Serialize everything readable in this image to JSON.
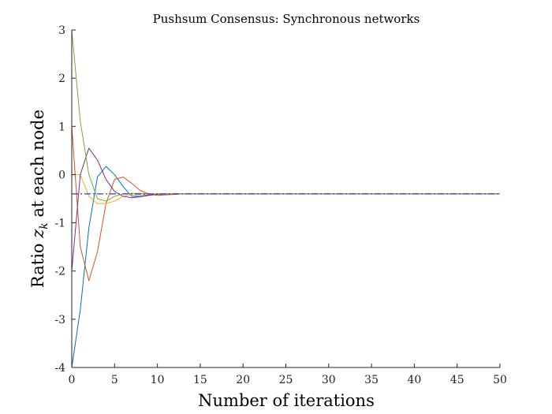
{
  "chart_data": {
    "type": "line",
    "title": "Pushsum Consensus: Synchronous networks",
    "xlabel": "Number of iterations",
    "ylabel_prefix": "Ratio ",
    "ylabel_var": "z",
    "ylabel_sub": "k",
    "ylabel_suffix": " at each node",
    "xlim": [
      0,
      50
    ],
    "ylim": [
      -4,
      3
    ],
    "xticks": [
      0,
      5,
      10,
      15,
      20,
      25,
      30,
      35,
      40,
      45,
      50
    ],
    "yticks": [
      -4,
      -3,
      -2,
      -1,
      0,
      1,
      2,
      3
    ],
    "grid": false,
    "consensus_value": -0.4,
    "consensus_color": "#3333dd",
    "series": [
      {
        "color": "#0072BD",
        "x": [
          0,
          1,
          2,
          3,
          4,
          5,
          6,
          7,
          8,
          9,
          10,
          11,
          12,
          13,
          14,
          50
        ],
        "y": [
          -4,
          -2.8,
          -1.1,
          -0.05,
          0.17,
          0.0,
          -0.25,
          -0.45,
          -0.45,
          -0.42,
          -0.41,
          -0.4,
          -0.4,
          -0.4,
          -0.4,
          -0.4
        ]
      },
      {
        "color": "#D95319",
        "x": [
          0,
          1,
          2,
          3,
          4,
          5,
          6,
          7,
          8,
          9,
          10,
          11,
          12,
          13,
          14,
          50
        ],
        "y": [
          1,
          -1.5,
          -2.2,
          -1.6,
          -0.6,
          -0.1,
          -0.05,
          -0.18,
          -0.33,
          -0.4,
          -0.43,
          -0.42,
          -0.41,
          -0.4,
          -0.4,
          -0.4
        ]
      },
      {
        "color": "#EDB120",
        "x": [
          0,
          1,
          2,
          3,
          4,
          5,
          6,
          7,
          8,
          9,
          10,
          11,
          12,
          13,
          14,
          50
        ],
        "y": [
          0,
          0,
          -0.45,
          -0.6,
          -0.6,
          -0.55,
          -0.45,
          -0.42,
          -0.42,
          -0.41,
          -0.4,
          -0.4,
          -0.4,
          -0.4,
          -0.4,
          -0.4
        ]
      },
      {
        "color": "#7E2F8E",
        "x": [
          0,
          1,
          2,
          3,
          4,
          5,
          6,
          7,
          8,
          9,
          10,
          11,
          12,
          13,
          14,
          50
        ],
        "y": [
          -2,
          0,
          0.55,
          0.3,
          -0.1,
          -0.35,
          -0.45,
          -0.48,
          -0.46,
          -0.43,
          -0.41,
          -0.4,
          -0.4,
          -0.4,
          -0.4,
          -0.4
        ]
      },
      {
        "color": "#77AC30",
        "x": [
          0,
          1,
          2,
          3,
          4,
          5,
          6,
          7,
          8,
          9,
          10,
          11,
          12,
          13,
          14,
          50
        ],
        "y": [
          3,
          1.1,
          0.0,
          -0.5,
          -0.55,
          -0.45,
          -0.4,
          -0.39,
          -0.39,
          -0.4,
          -0.4,
          -0.4,
          -0.4,
          -0.4,
          -0.4,
          -0.4
        ]
      }
    ]
  }
}
